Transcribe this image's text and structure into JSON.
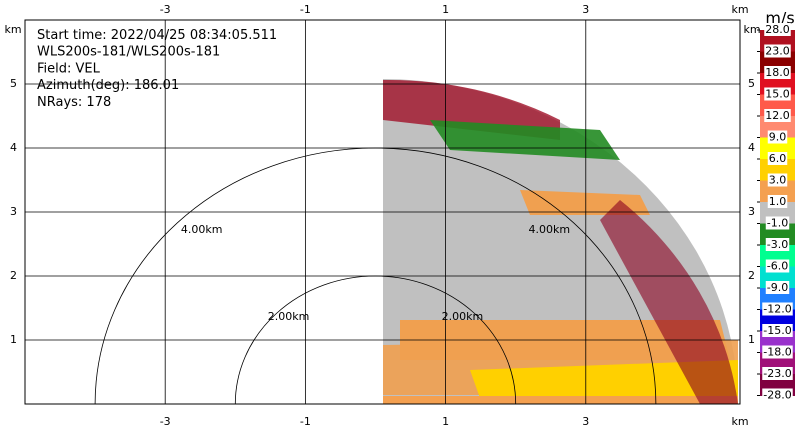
{
  "chart_data": {
    "type": "ppi",
    "annotations": [
      "Start time: 2022/04/25 08:34:05.511",
      "WLS200s-181/WLS200s-181",
      "Field: VEL",
      "Azimuth(deg): 186.01",
      "NRays: 178"
    ],
    "x_unit": "km",
    "y_unit": "km",
    "xlim": [
      -5,
      5.2
    ],
    "ylim": [
      0,
      6
    ],
    "xticks": [
      -3,
      -1,
      1,
      3
    ],
    "yticks": [
      1,
      2,
      3,
      4,
      5
    ],
    "grid": true,
    "rings": [
      {
        "radius": 2,
        "label": "2.00km"
      },
      {
        "radius": 4,
        "label": "4.00km"
      }
    ],
    "colorbar": {
      "title": "m/s",
      "ticks": [
        {
          "value": 28,
          "label": "28.0"
        },
        {
          "value": 23,
          "label": "23.0"
        },
        {
          "value": 18,
          "label": "18.0"
        },
        {
          "value": 15,
          "label": "15.0"
        },
        {
          "value": 12,
          "label": "12.0"
        },
        {
          "value": 9,
          "label": "9.0"
        },
        {
          "value": 6,
          "label": "6.0"
        },
        {
          "value": 3,
          "label": "3.0"
        },
        {
          "value": 1,
          "label": "1.0"
        },
        {
          "value": -1,
          "label": "-1.0"
        },
        {
          "value": -3,
          "label": "-3.0"
        },
        {
          "value": -6,
          "label": "-6.0"
        },
        {
          "value": -9,
          "label": "-9.0"
        },
        {
          "value": -12,
          "label": "-12.0"
        },
        {
          "value": -15,
          "label": "-15.0"
        },
        {
          "value": -18,
          "label": "-18.0"
        },
        {
          "value": -23,
          "label": "-23.0"
        },
        {
          "value": -28,
          "label": "-28.0"
        }
      ],
      "colors": [
        "#b01020",
        "#8b0000",
        "#e01020",
        "#ff5a4a",
        "#ff8a70",
        "#ffff00",
        "#ffd000",
        "#f4a050",
        "#c0c0c0",
        "#228b22",
        "#00ff90",
        "#00e0d0",
        "#2080ff",
        "#0000e0",
        "#9932cc",
        "#a01078",
        "#800040"
      ]
    }
  }
}
